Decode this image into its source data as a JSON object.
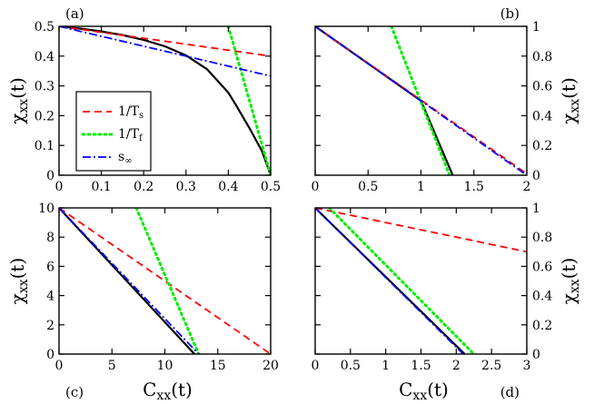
{
  "chart_data": [
    {
      "type": "line",
      "panel_label": "(a)",
      "ylabel_main": "χ",
      "ylabel_sub": "xx",
      "ylabel_tail": "(t)",
      "ylabel_side": "left",
      "xlabel_main": "",
      "xlabel_sub": "",
      "xlabel_tail": "",
      "xlim": [
        0,
        0.5
      ],
      "ylim": [
        0,
        0.5
      ],
      "xticks": [
        "0",
        "0.1",
        "0.2",
        "0.3",
        "0.4",
        "0.5"
      ],
      "xtick_values": [
        0,
        0.1,
        0.2,
        0.3,
        0.4,
        0.5
      ],
      "yticks": [
        "0",
        "0.1",
        "0.2",
        "0.3",
        "0.4",
        "0.5"
      ],
      "ytick_values": [
        0,
        0.1,
        0.2,
        0.3,
        0.4,
        0.5
      ],
      "legend": {
        "entries": [
          {
            "series": "1/T_s",
            "main": "1/T",
            "sub": "s"
          },
          {
            "series": "1/T_f",
            "main": "1/T",
            "sub": "f"
          },
          {
            "series": "s_inf",
            "main": "s",
            "sub": "∞"
          }
        ]
      },
      "series": [
        {
          "name": "data",
          "style": "solid",
          "color": "#000000",
          "points": [
            [
              0,
              0.5
            ],
            [
              0.05,
              0.4924
            ],
            [
              0.1,
              0.4828
            ],
            [
              0.15,
              0.4706
            ],
            [
              0.2,
              0.4545
            ],
            [
              0.25,
              0.433
            ],
            [
              0.3,
              0.4025
            ],
            [
              0.35,
              0.3556
            ],
            [
              0.4,
              0.2774
            ],
            [
              0.42,
              0.2307
            ],
            [
              0.45,
              0.1581
            ],
            [
              0.48,
              0.0798
            ],
            [
              0.5,
              0
            ]
          ]
        },
        {
          "name": "1/T_s",
          "style": "dashed",
          "color": "#ff0000",
          "points": [
            [
              0,
              0.5
            ],
            [
              0.5,
              0.4
            ]
          ]
        },
        {
          "name": "1/T_f",
          "style": "dotted",
          "color": "#00ee00",
          "points": [
            [
              0.4,
              0.5
            ],
            [
              0.5,
              0
            ]
          ]
        },
        {
          "name": "s_inf",
          "style": "dashdot",
          "color": "#0000ff",
          "points": [
            [
              0,
              0.5
            ],
            [
              0.5,
              0.333
            ]
          ]
        }
      ]
    },
    {
      "type": "line",
      "panel_label": "(b)",
      "ylabel_main": "χ",
      "ylabel_sub": "xx",
      "ylabel_tail": "(t)",
      "ylabel_side": "right",
      "xlabel_main": "",
      "xlabel_sub": "",
      "xlabel_tail": "",
      "xlim": [
        0,
        2
      ],
      "ylim": [
        0,
        1
      ],
      "xticks": [
        "0",
        "0.5",
        "1",
        "1.5",
        "2"
      ],
      "xtick_values": [
        0,
        0.5,
        1,
        1.5,
        2
      ],
      "yticks": [
        "0",
        "0.2",
        "0.4",
        "0.6",
        "0.8",
        "1"
      ],
      "ytick_values": [
        0,
        0.2,
        0.4,
        0.6,
        0.8,
        1
      ],
      "series": [
        {
          "name": "data",
          "style": "solid",
          "color": "#000000",
          "points": [
            [
              0,
              1
            ],
            [
              1,
              0.5
            ],
            [
              1.3,
              0
            ]
          ]
        },
        {
          "name": "1/T_s",
          "style": "dashed",
          "color": "#ff0000",
          "points": [
            [
              0,
              1
            ],
            [
              2,
              0.01
            ]
          ]
        },
        {
          "name": "1/T_f",
          "style": "dotted",
          "color": "#00ee00",
          "points": [
            [
              0.72,
              1
            ],
            [
              1.27,
              0
            ]
          ]
        },
        {
          "name": "s_inf",
          "style": "dashdot",
          "color": "#0000ff",
          "points": [
            [
              0,
              1
            ],
            [
              2,
              0
            ]
          ]
        }
      ]
    },
    {
      "type": "line",
      "panel_label": "(c)",
      "ylabel_main": "χ",
      "ylabel_sub": "xx",
      "ylabel_tail": "(t)",
      "ylabel_side": "left",
      "xlabel_main": "C",
      "xlabel_sub": "xx",
      "xlabel_tail": "(t)",
      "xlim": [
        0,
        20
      ],
      "ylim": [
        0,
        10
      ],
      "xticks": [
        "0",
        "5",
        "10",
        "15",
        "20"
      ],
      "xtick_values": [
        0,
        5,
        10,
        15,
        20
      ],
      "yticks": [
        "0",
        "2",
        "4",
        "6",
        "8",
        "10"
      ],
      "ytick_values": [
        0,
        2,
        4,
        6,
        8,
        10
      ],
      "series": [
        {
          "name": "data",
          "style": "solid",
          "color": "#000000",
          "points": [
            [
              0,
              10
            ],
            [
              12.8,
              0
            ]
          ]
        },
        {
          "name": "1/T_s",
          "style": "dashed",
          "color": "#ff0000",
          "points": [
            [
              0,
              10
            ],
            [
              20,
              0
            ]
          ]
        },
        {
          "name": "1/T_f",
          "style": "dotted",
          "color": "#00ee00",
          "points": [
            [
              7.3,
              10
            ],
            [
              13.2,
              0
            ]
          ]
        },
        {
          "name": "s_inf",
          "style": "dashdot",
          "color": "#0000ff",
          "points": [
            [
              0,
              10
            ],
            [
              13.2,
              0
            ]
          ]
        }
      ]
    },
    {
      "type": "line",
      "panel_label": "(d)",
      "ylabel_main": "χ",
      "ylabel_sub": "xx",
      "ylabel_tail": "(t)",
      "ylabel_side": "right",
      "xlabel_main": "C",
      "xlabel_sub": "xx",
      "xlabel_tail": "(t)",
      "xlim": [
        0,
        3
      ],
      "ylim": [
        0,
        1
      ],
      "xticks": [
        "0",
        "0.5",
        "1",
        "1.5",
        "2",
        "2.5",
        "3"
      ],
      "xtick_values": [
        0,
        0.5,
        1,
        1.5,
        2,
        2.5,
        3
      ],
      "yticks": [
        "0",
        "0.2",
        "0.4",
        "0.6",
        "0.8",
        "1"
      ],
      "ytick_values": [
        0,
        0.2,
        0.4,
        0.6,
        0.8,
        1
      ],
      "series": [
        {
          "name": "data",
          "style": "solid",
          "color": "#000000",
          "points": [
            [
              0,
              1
            ],
            [
              2.12,
              0
            ]
          ]
        },
        {
          "name": "1/T_s",
          "style": "dashed",
          "color": "#ff0000",
          "points": [
            [
              0,
              1
            ],
            [
              3,
              0.7
            ]
          ]
        },
        {
          "name": "1/T_f",
          "style": "dotted",
          "color": "#00ee00",
          "points": [
            [
              0.2,
              1
            ],
            [
              2.25,
              0
            ]
          ]
        },
        {
          "name": "s_inf",
          "style": "dashdot",
          "color": "#0000ff",
          "points": [
            [
              0,
              1
            ],
            [
              2.1,
              0
            ]
          ]
        }
      ]
    }
  ]
}
